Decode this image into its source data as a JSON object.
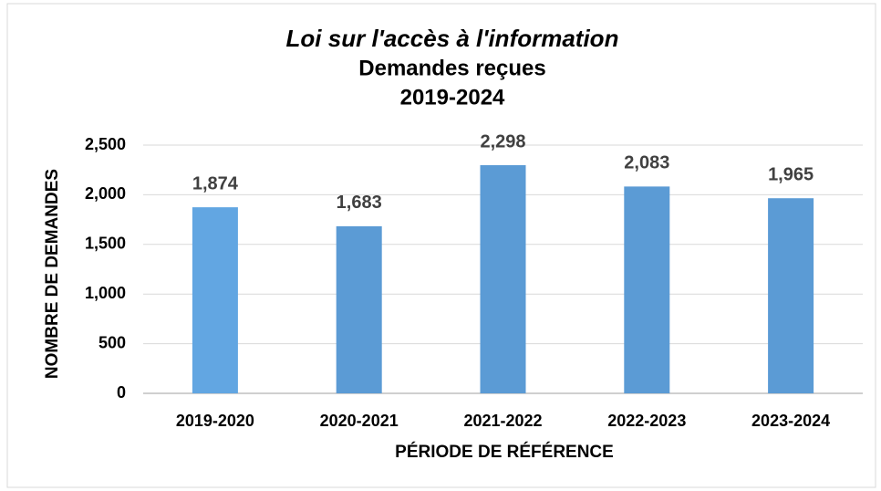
{
  "chart_data": {
    "type": "bar",
    "title": [
      "Loi sur l'accès à l'information",
      "Demandes reçues",
      "2019-2024"
    ],
    "x_label": "PÉRIODE DE RÉFÉRENCE",
    "y_label": "NOMBRE DE DEMANDES",
    "categories": [
      "2019-2020",
      "2020-2021",
      "2021-2022",
      "2022-2023",
      "2023-2024"
    ],
    "values": [
      1874,
      1683,
      2298,
      2083,
      1965
    ],
    "value_labels": [
      "1,874",
      "1,683",
      "2,298",
      "2,083",
      "1,965"
    ],
    "colors": [
      "#62a6e2",
      "#5b9bd5",
      "#5b9bd5",
      "#5b9bd5",
      "#5b9bd5"
    ],
    "ylim": [
      0,
      2500
    ],
    "yticks": [
      0,
      500,
      {
        "value": 1000,
        "label": "1,000"
      },
      {
        "value": 1500,
        "label": "1,500"
      },
      {
        "value": 2000,
        "label": "2,000"
      },
      {
        "value": 2500,
        "label": "2,500"
      }
    ],
    "grid": true
  }
}
